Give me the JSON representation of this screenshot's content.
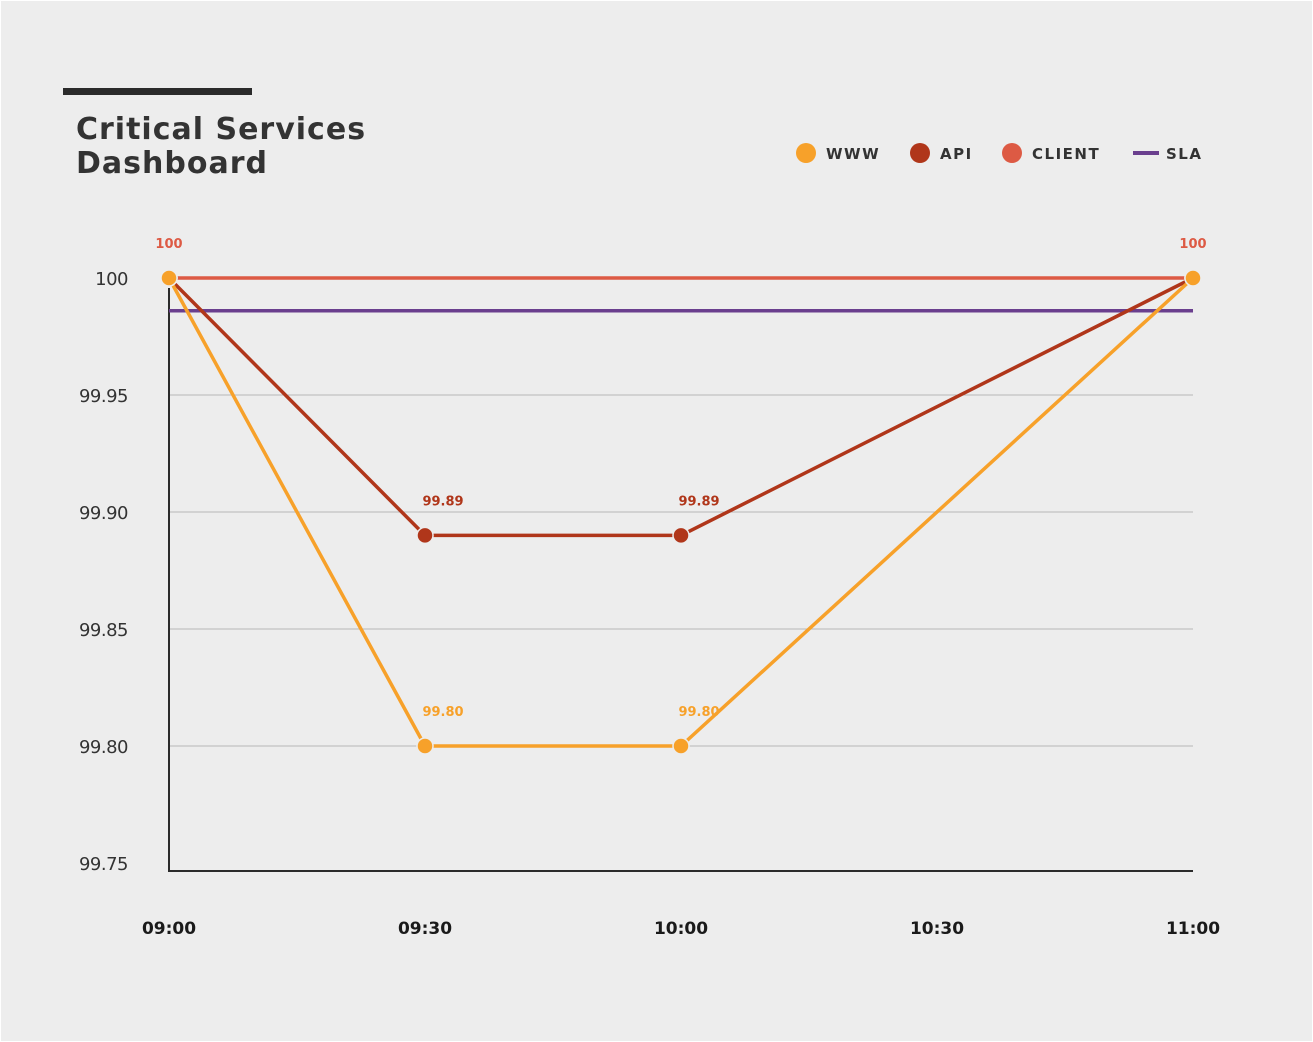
{
  "chart_data": {
    "type": "line",
    "title": "Critical Services Dashboard",
    "xlabel": "",
    "ylabel": "",
    "categories": [
      "09:00",
      "09:30",
      "10:00",
      "10:30",
      "11:00"
    ],
    "ylim": [
      99.75,
      100
    ],
    "yticks": [
      "99.75",
      "99.80",
      "99.85",
      "99.90",
      "99.95",
      "100"
    ],
    "grid": true,
    "legend_position": "top-right",
    "series": [
      {
        "name": "WWW",
        "color": "#f7a12a",
        "marker": "circle",
        "points": [
          {
            "x": "09:00",
            "y": 100
          },
          {
            "x": "09:30",
            "y": 99.8
          },
          {
            "x": "10:00",
            "y": 99.8
          },
          {
            "x": "11:00",
            "y": 100
          }
        ],
        "labels": [
          "",
          "99.80",
          "99.80",
          ""
        ]
      },
      {
        "name": "API",
        "color": "#b0361a",
        "marker": "circle",
        "points": [
          {
            "x": "09:00",
            "y": 100
          },
          {
            "x": "09:30",
            "y": 99.89
          },
          {
            "x": "10:00",
            "y": 99.89
          },
          {
            "x": "11:00",
            "y": 100
          }
        ],
        "labels": [
          "",
          "99.89",
          "99.89",
          ""
        ]
      },
      {
        "name": "CLIENT",
        "color": "#dd5a44",
        "marker": "circle",
        "points": [
          {
            "x": "09:00",
            "y": 100
          },
          {
            "x": "11:00",
            "y": 100
          }
        ],
        "labels": [
          "100",
          "100"
        ]
      },
      {
        "name": "SLA",
        "color": "#6a3f8e",
        "marker": "line",
        "points": [
          {
            "x": "09:00",
            "y": 99.986
          },
          {
            "x": "11:00",
            "y": 99.986
          }
        ],
        "labels": [
          "",
          ""
        ]
      }
    ]
  }
}
